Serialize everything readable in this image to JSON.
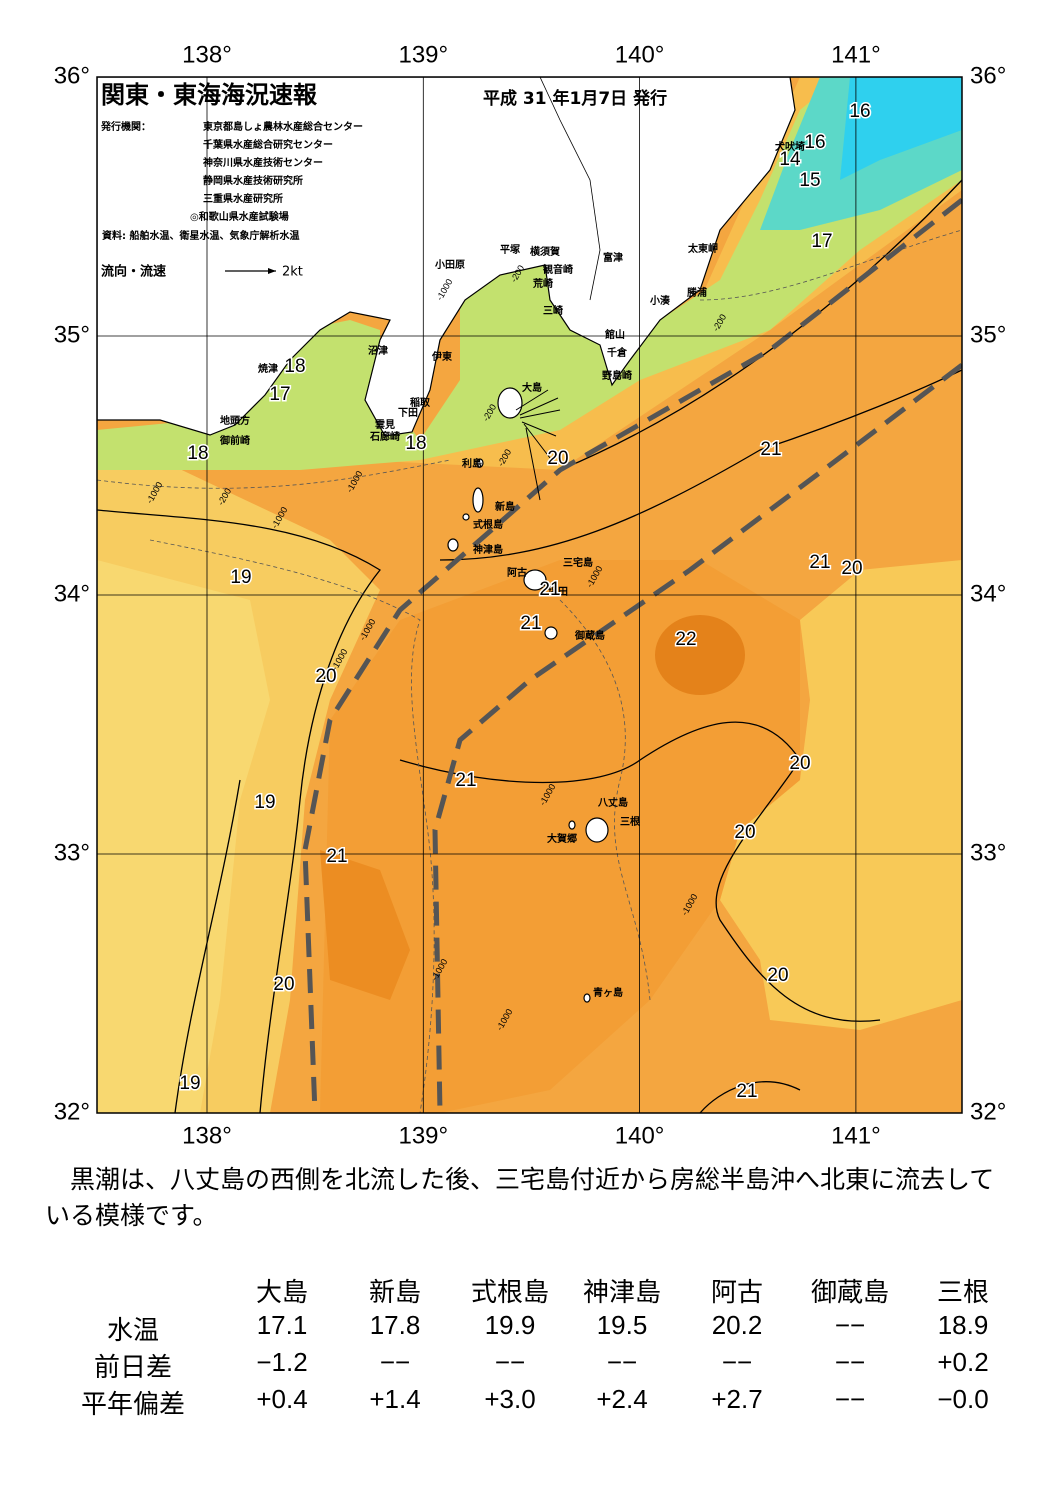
{
  "map": {
    "title": "関東・東海海況速報",
    "issued": "平成 31 年1月7日 発行",
    "issuer_label": "発行機関：",
    "issuers": [
      "東京都島しょ農林水産総合センター",
      "千葉県水産総合研究センター",
      "神奈川県水産技術センター",
      "静岡県水産技術研究所",
      "三重県水産研究所",
      "◎和歌山県水産試験場"
    ],
    "source": "資料: 船舶水温、衛星水温、気象庁解析水温",
    "legend": {
      "label": "流向・流速",
      "speed": "2kt"
    },
    "lon_ticks": [
      {
        "value": 138,
        "label": "138°"
      },
      {
        "value": 139,
        "label": "139°"
      },
      {
        "value": 140,
        "label": "140°"
      },
      {
        "value": 141,
        "label": "141°"
      }
    ],
    "lat_ticks": [
      {
        "value": 36,
        "label": "36°"
      },
      {
        "value": 35,
        "label": "35°"
      },
      {
        "value": 34,
        "label": "34°"
      },
      {
        "value": 33,
        "label": "33°"
      },
      {
        "value": 32,
        "label": "32°"
      }
    ],
    "places": [
      "小田原",
      "平塚",
      "横須賀",
      "富津",
      "観音崎",
      "荒崎",
      "三崎",
      "太東岬",
      "勝浦",
      "小湊",
      "館山",
      "千倉",
      "野島崎",
      "犬吠埼",
      "沼津",
      "伊東",
      "焼津",
      "稲取",
      "下田",
      "雲見",
      "石廊崎",
      "地頭方",
      "御前崎",
      "大島",
      "利島",
      "新島",
      "式根島",
      "神津島",
      "三宅島",
      "阿古",
      "坪田",
      "御蔵島",
      "八丈島",
      "三根",
      "大賀郷",
      "青ヶ島"
    ],
    "temperature_labels": [
      16,
      16,
      14,
      15,
      17,
      18,
      17,
      18,
      18,
      20,
      21,
      19,
      21,
      21,
      22,
      21,
      20,
      20,
      20,
      21,
      19,
      20,
      21,
      20,
      20,
      19,
      21
    ],
    "depth_labels": [
      "-200",
      "-200",
      "-200",
      "-200",
      "-1000",
      "-1000",
      "-1000",
      "-1000",
      "-1000",
      "-1000",
      "-1000",
      "-1000",
      "-1000",
      "-200",
      "-1000",
      "-1000"
    ]
  },
  "summary": "黒潮は、八丈島の西側を北流した後、三宅島付近から房総半島沖へ北東に流去している模様です。",
  "table": {
    "columns": [
      "大島",
      "新島",
      "式根島",
      "神津島",
      "阿古",
      "御蔵島",
      "三根"
    ],
    "rows": [
      {
        "label": "水温",
        "cells": [
          "17.1",
          "17.8",
          "19.9",
          "19.5",
          "20.2",
          "−−",
          "18.9"
        ]
      },
      {
        "label": "前日差",
        "cells": [
          "−1.2",
          "−−",
          "−−",
          "−−",
          "−−",
          "−−",
          "+0.2"
        ]
      },
      {
        "label": "平年偏差",
        "cells": [
          "+0.4",
          "+1.4",
          "+3.0",
          "+2.4",
          "+2.7",
          "−−",
          "−0.0"
        ]
      }
    ]
  }
}
